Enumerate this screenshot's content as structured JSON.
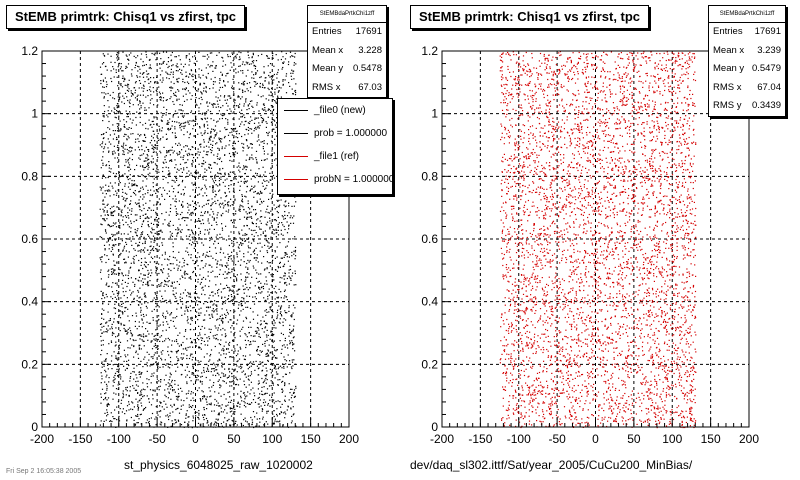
{
  "footer_text": "Fri Sep  2 16:05:38 2005",
  "panels": [
    {
      "title": "StEMB primtrk: Chisq1 vs zfirst, tpc",
      "xlabel": "st_physics_6048025_raw_1020002",
      "stats": {
        "name": "StEMBdaPrtkChi1zff",
        "rows": [
          {
            "label": "Entries",
            "value": "17691"
          },
          {
            "label": "Mean x",
            "value": "3.228"
          },
          {
            "label": "Mean y",
            "value": "0.5478"
          },
          {
            "label": "RMS x",
            "value": "67.03"
          }
        ]
      },
      "legend": [
        {
          "label": "_file0 (new)",
          "color": "#000000"
        },
        {
          "label": "prob = 1.000000",
          "color": "#000000"
        },
        {
          "label": "_file1 (ref)",
          "color": "#d40000"
        },
        {
          "label": "probN = 1.000000",
          "color": "#d40000"
        }
      ]
    },
    {
      "title": "StEMB primtrk: Chisq1 vs zfirst, tpc",
      "xlabel": "dev/daq_sl302.ittf/Sat/year_2005/CuCu200_MinBias/",
      "stats": {
        "name": "StEMBdaPrtkChi1zff",
        "rows": [
          {
            "label": "Entries",
            "value": "17691"
          },
          {
            "label": "Mean x",
            "value": "3.239"
          },
          {
            "label": "Mean y",
            "value": "0.5479"
          },
          {
            "label": "RMS x",
            "value": "67.04"
          },
          {
            "label": "RMS y",
            "value": "0.3439"
          }
        ]
      }
    }
  ],
  "chart_data": [
    {
      "type": "scatter",
      "marker_color": "#000000",
      "xlim": [
        -200,
        200
      ],
      "ylim": [
        0,
        1.2
      ],
      "x_ticks": [
        -200,
        -150,
        -100,
        -50,
        0,
        50,
        100,
        150,
        200
      ],
      "y_ticks": [
        0,
        0.2,
        0.4,
        0.6,
        0.8,
        1,
        1.2
      ],
      "grid": true,
      "entries": 17691,
      "mean_x": 3.228,
      "mean_y": 0.5478,
      "rms_x": 67.03,
      "x_range_populated": [
        -125,
        130
      ]
    },
    {
      "type": "scatter",
      "marker_color": "#d40000",
      "xlim": [
        -200,
        200
      ],
      "ylim": [
        0,
        1.2
      ],
      "x_ticks": [
        -200,
        -150,
        -100,
        -50,
        0,
        50,
        100,
        150,
        200
      ],
      "y_ticks": [
        0,
        0.2,
        0.4,
        0.6,
        0.8,
        1,
        1.2
      ],
      "grid": true,
      "entries": 17691,
      "mean_x": 3.239,
      "mean_y": 0.5479,
      "rms_x": 67.04,
      "rms_y": 0.3439,
      "x_range_populated": [
        -125,
        130
      ]
    }
  ]
}
